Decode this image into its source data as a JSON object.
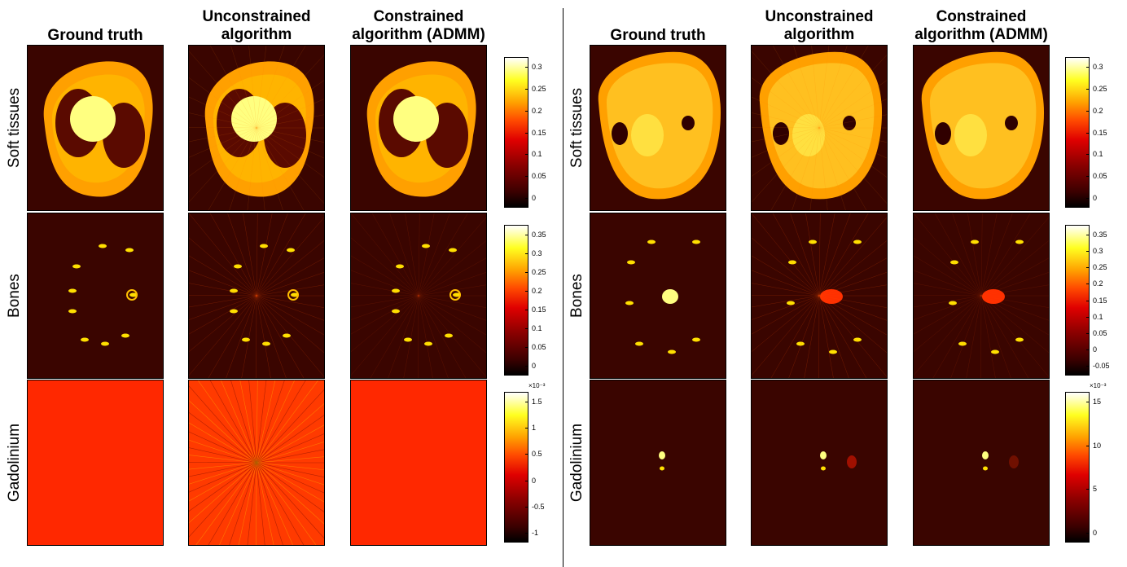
{
  "left": {
    "column_titles": [
      "Ground truth",
      "Unconstrained\nalgorithm",
      "Constrained\nalgorithm (ADMM)"
    ],
    "row_labels": [
      "Soft tissues",
      "Bones",
      "Gadolinium"
    ],
    "colorbars": [
      {
        "ticks": [
          "0.3",
          "0.25",
          "0.2",
          "0.15",
          "0.1",
          "0.05",
          "0"
        ],
        "exponent": ""
      },
      {
        "ticks": [
          "0.35",
          "0.3",
          "0.25",
          "0.2",
          "0.15",
          "0.1",
          "0.05",
          "0"
        ],
        "exponent": ""
      },
      {
        "ticks": [
          "1.5",
          "1",
          "0.5",
          "0",
          "-0.5",
          "-1"
        ],
        "exponent": "×10⁻³"
      }
    ]
  },
  "right": {
    "column_titles": [
      "Ground truth",
      "Unconstrained\nalgorithm",
      "Constrained\nalgorithm (ADMM)"
    ],
    "row_labels": [
      "Soft tissues",
      "Bones",
      "Gadolinium"
    ],
    "colorbars": [
      {
        "ticks": [
          "0.3",
          "0.25",
          "0.2",
          "0.15",
          "0.1",
          "0.05",
          "0"
        ],
        "exponent": ""
      },
      {
        "ticks": [
          "0.35",
          "0.3",
          "0.25",
          "0.2",
          "0.15",
          "0.1",
          "0.05",
          "0",
          "-0.05"
        ],
        "exponent": ""
      },
      {
        "ticks": [
          "15",
          "10",
          "5",
          "0"
        ],
        "exponent": "×10⁻³"
      }
    ]
  },
  "colors": {
    "background_dark": "#3a0500",
    "soft_tissue": "#ffa000",
    "lung": "#5a0a00",
    "bright": "#ffff80",
    "gadolinium_uniform": "#ff2800"
  }
}
